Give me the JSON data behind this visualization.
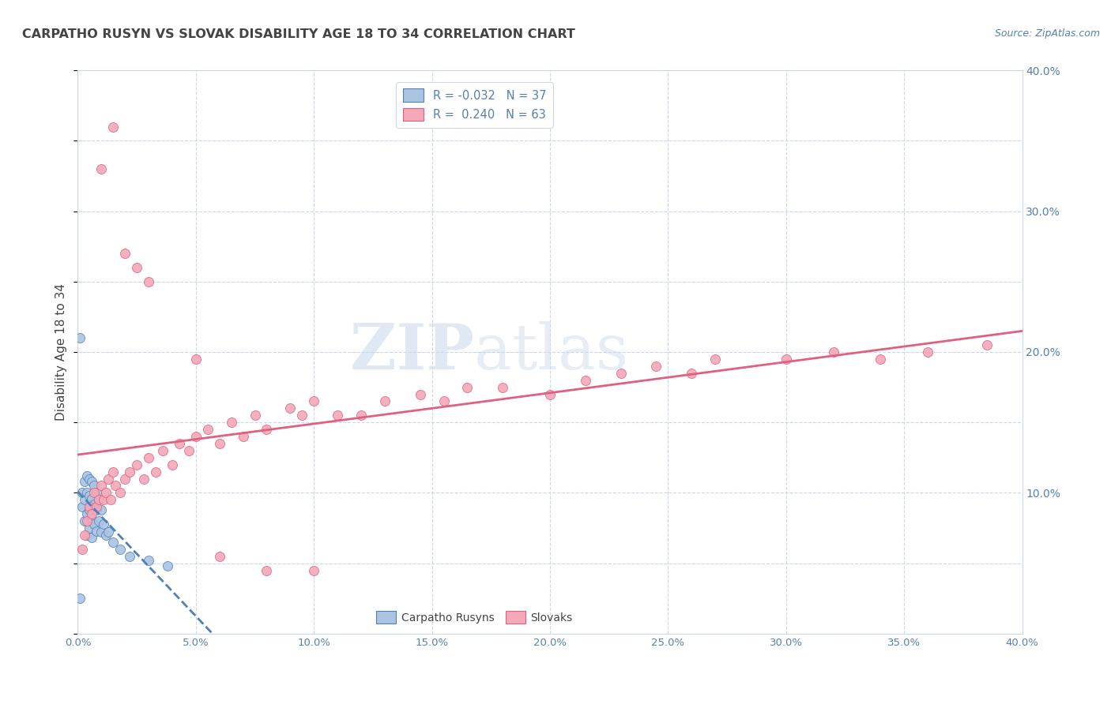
{
  "title": "CARPATHO RUSYN VS SLOVAK DISABILITY AGE 18 TO 34 CORRELATION CHART",
  "source": "Source: ZipAtlas.com",
  "ylabel_label": "Disability Age 18 to 34",
  "x_min": 0.0,
  "x_max": 0.4,
  "y_min": 0.0,
  "y_max": 0.4,
  "carpatho_color": "#aac4e2",
  "slovak_color": "#f4a8b8",
  "trend_carpatho_color": "#5080b8",
  "trend_slovak_color": "#e06080",
  "legend_R_carpatho": "-0.032",
  "legend_N_carpatho": "37",
  "legend_R_slovak": "0.240",
  "legend_N_slovak": "63",
  "carpatho_x": [
    0.001,
    0.002,
    0.002,
    0.003,
    0.003,
    0.003,
    0.004,
    0.004,
    0.004,
    0.004,
    0.005,
    0.005,
    0.005,
    0.005,
    0.006,
    0.006,
    0.006,
    0.006,
    0.007,
    0.007,
    0.007,
    0.008,
    0.008,
    0.008,
    0.009,
    0.009,
    0.01,
    0.01,
    0.011,
    0.012,
    0.013,
    0.015,
    0.018,
    0.022,
    0.03,
    0.038,
    0.001
  ],
  "carpatho_y": [
    0.025,
    0.1,
    0.09,
    0.108,
    0.095,
    0.08,
    0.112,
    0.1,
    0.085,
    0.07,
    0.11,
    0.098,
    0.088,
    0.075,
    0.108,
    0.096,
    0.082,
    0.068,
    0.105,
    0.092,
    0.078,
    0.1,
    0.088,
    0.073,
    0.095,
    0.08,
    0.088,
    0.072,
    0.078,
    0.07,
    0.072,
    0.065,
    0.06,
    0.055,
    0.052,
    0.048,
    0.21
  ],
  "slovak_x": [
    0.002,
    0.003,
    0.004,
    0.005,
    0.006,
    0.007,
    0.008,
    0.009,
    0.01,
    0.011,
    0.012,
    0.013,
    0.014,
    0.015,
    0.016,
    0.018,
    0.02,
    0.022,
    0.025,
    0.028,
    0.03,
    0.033,
    0.036,
    0.04,
    0.043,
    0.047,
    0.05,
    0.055,
    0.06,
    0.065,
    0.07,
    0.075,
    0.08,
    0.09,
    0.095,
    0.1,
    0.11,
    0.12,
    0.13,
    0.145,
    0.155,
    0.165,
    0.18,
    0.2,
    0.215,
    0.23,
    0.245,
    0.26,
    0.27,
    0.3,
    0.32,
    0.34,
    0.36,
    0.385,
    0.01,
    0.015,
    0.02,
    0.025,
    0.03,
    0.05,
    0.06,
    0.08,
    0.1
  ],
  "slovak_y": [
    0.06,
    0.07,
    0.08,
    0.09,
    0.085,
    0.1,
    0.09,
    0.095,
    0.105,
    0.095,
    0.1,
    0.11,
    0.095,
    0.115,
    0.105,
    0.1,
    0.11,
    0.115,
    0.12,
    0.11,
    0.125,
    0.115,
    0.13,
    0.12,
    0.135,
    0.13,
    0.14,
    0.145,
    0.135,
    0.15,
    0.14,
    0.155,
    0.145,
    0.16,
    0.155,
    0.165,
    0.155,
    0.155,
    0.165,
    0.17,
    0.165,
    0.175,
    0.175,
    0.17,
    0.18,
    0.185,
    0.19,
    0.185,
    0.195,
    0.195,
    0.2,
    0.195,
    0.2,
    0.205,
    0.33,
    0.36,
    0.27,
    0.26,
    0.25,
    0.195,
    0.055,
    0.045,
    0.045
  ],
  "background_color": "#ffffff",
  "grid_color": "#ccd8e8",
  "title_color": "#444444",
  "axis_color": "#5580b0",
  "watermark_zip": "ZIP",
  "watermark_atlas": "atlas",
  "watermark_color": "#c8d8ea"
}
